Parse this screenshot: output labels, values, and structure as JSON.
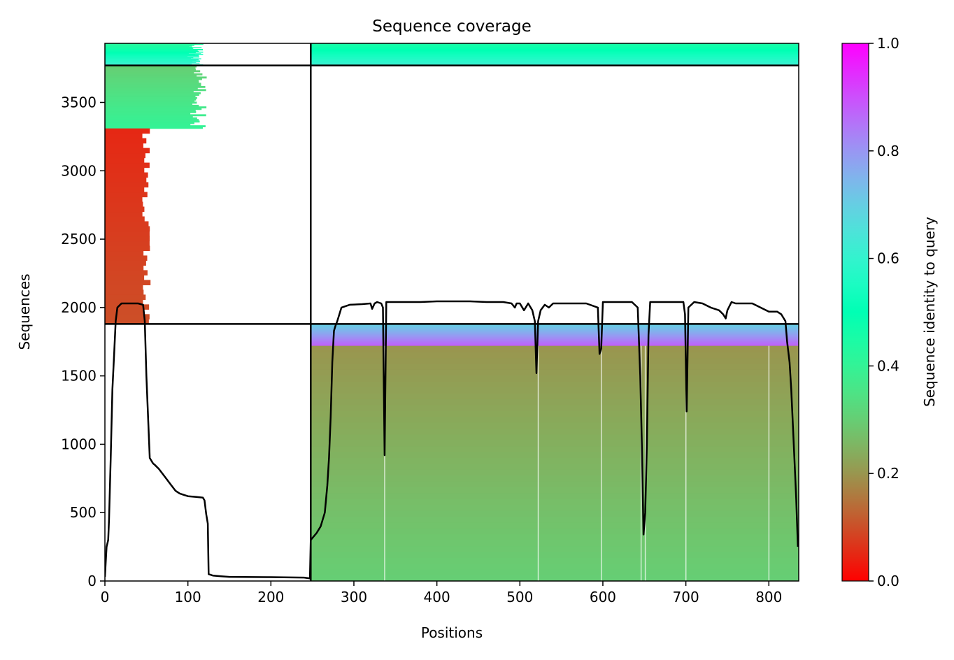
{
  "chart_data": {
    "type": "heatmap",
    "title": "Sequence coverage",
    "xlabel": "Positions",
    "ylabel": "Sequences",
    "xlim": [
      0,
      836
    ],
    "ylim": [
      0,
      3932
    ],
    "xticks": [
      0,
      100,
      200,
      300,
      400,
      500,
      600,
      700,
      800
    ],
    "yticks": [
      0,
      500,
      1000,
      1500,
      2000,
      2500,
      3000,
      3500
    ],
    "colorbar": {
      "label": "Sequence identity to query",
      "colormap": "rainbow_r",
      "range": [
        0,
        1
      ],
      "ticks": [
        "0.0",
        "0.2",
        "0.4",
        "0.6",
        "0.8",
        "1.0"
      ]
    },
    "segment_boundaries": {
      "x": 248,
      "y": [
        1880,
        3770
      ]
    },
    "blocks": [
      {
        "x": [
          0,
          248
        ],
        "y": [
          3770,
          3932
        ],
        "identity": [
          0.42,
          0.62
        ],
        "max_end": 120
      },
      {
        "x": [
          0,
          248
        ],
        "y": [
          3310,
          3770
        ],
        "identity": [
          0.3,
          0.4
        ],
        "max_end": 124
      },
      {
        "x": [
          0,
          248
        ],
        "y": [
          1880,
          3310
        ],
        "identity": [
          0.05,
          0.1
        ],
        "max_end": 55
      },
      {
        "x": [
          248,
          836
        ],
        "y": [
          3770,
          3932
        ],
        "identity": [
          0.45,
          0.62
        ]
      },
      {
        "x": [
          248,
          836
        ],
        "y": [
          1720,
          1880
        ],
        "identity": [
          0.7,
          0.88
        ]
      },
      {
        "x": [
          248,
          836
        ],
        "y": [
          0,
          1720
        ],
        "identity": [
          0.2,
          0.3
        ]
      }
    ],
    "coverage": {
      "x": [
        0,
        2,
        4,
        5,
        7,
        9,
        11,
        13,
        15,
        20,
        30,
        40,
        46,
        48,
        50,
        52,
        54,
        56,
        58,
        60,
        65,
        70,
        75,
        80,
        85,
        90,
        95,
        100,
        110,
        118,
        120,
        122,
        124,
        125,
        130,
        140,
        150,
        200,
        240,
        246,
        247,
        248,
        255,
        260,
        265,
        268,
        270,
        272,
        274,
        276,
        278,
        280,
        285,
        295,
        310,
        320,
        322,
        325,
        328,
        333,
        335,
        337,
        339,
        345,
        360,
        380,
        400,
        420,
        440,
        460,
        480,
        490,
        494,
        496,
        500,
        505,
        510,
        515,
        518,
        520,
        522,
        525,
        530,
        535,
        540,
        545,
        550,
        560,
        580,
        594,
        596,
        598,
        600,
        602,
        605,
        620,
        635,
        642,
        645,
        647,
        649,
        651,
        653,
        655,
        657,
        665,
        690,
        697,
        699,
        701,
        703,
        710,
        720,
        730,
        740,
        745,
        748,
        750,
        755,
        760,
        780,
        800,
        810,
        815,
        820,
        822,
        825,
        827,
        830,
        833,
        835
      ],
      "y": [
        30,
        250,
        300,
        450,
        900,
        1400,
        1650,
        1900,
        2000,
        2030,
        2030,
        2030,
        2020,
        1900,
        1500,
        1200,
        900,
        880,
        860,
        850,
        820,
        780,
        740,
        700,
        660,
        640,
        630,
        620,
        615,
        610,
        590,
        490,
        420,
        50,
        40,
        35,
        30,
        28,
        25,
        20,
        18,
        300,
        350,
        400,
        500,
        700,
        900,
        1200,
        1600,
        1830,
        1870,
        1900,
        2000,
        2020,
        2025,
        2030,
        1990,
        2030,
        2040,
        2030,
        2000,
        920,
        2040,
        2040,
        2040,
        2040,
        2045,
        2045,
        2045,
        2040,
        2040,
        2030,
        2000,
        2030,
        2030,
        1980,
        2030,
        1980,
        1900,
        1520,
        1900,
        1980,
        2020,
        2000,
        2030,
        2030,
        2030,
        2030,
        2030,
        2000,
        1660,
        1700,
        2040,
        2040,
        2040,
        2040,
        2040,
        2000,
        1500,
        1000,
        340,
        500,
        1000,
        1800,
        2040,
        2040,
        2040,
        2040,
        1950,
        1240,
        2000,
        2040,
        2030,
        2000,
        1980,
        1950,
        1920,
        1980,
        2040,
        2030,
        2030,
        1970,
        1970,
        1950,
        1900,
        1750,
        1600,
        1400,
        1000,
        600,
        250
      ]
    }
  }
}
